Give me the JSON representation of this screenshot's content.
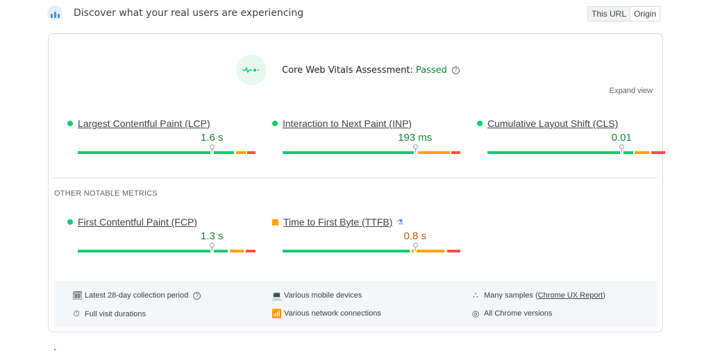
{
  "header": {
    "title": "Discover what your real users are experiencing",
    "icon": "users-crux-icon",
    "toggle": [
      {
        "label": "This URL",
        "active": true
      },
      {
        "label": "Origin",
        "active": false
      }
    ]
  },
  "assessment": {
    "label": "Core Web Vitals Assessment:",
    "status": "Passed",
    "status_color": "#188038",
    "help": "?",
    "expand_label": "Expand view"
  },
  "core_metrics": [
    {
      "name": "Largest Contentful Paint (LCP)",
      "value": "1.6 s",
      "rating": "good",
      "marker_pct": 75.5,
      "segments": [
        {
          "color": "#0cce6b",
          "from": 0,
          "to": 74.5
        },
        {
          "color": "#0cce6b",
          "from": 76.5,
          "to": 88
        },
        {
          "color": "#ffa400",
          "from": 89,
          "to": 94.5
        },
        {
          "color": "#ff4e42",
          "from": 95.5,
          "to": 100
        }
      ]
    },
    {
      "name": "Interaction to Next Paint (INP)",
      "value": "193 ms",
      "rating": "good",
      "marker_pct": 74.5,
      "segments": [
        {
          "color": "#0cce6b",
          "from": 0,
          "to": 74
        },
        {
          "color": "#ffa400",
          "from": 76,
          "to": 94
        },
        {
          "color": "#ff4e42",
          "from": 95,
          "to": 100
        }
      ]
    },
    {
      "name": "Cumulative Layout Shift (CLS)",
      "value": "0.01",
      "rating": "good",
      "marker_pct": 75.5,
      "segments": [
        {
          "color": "#0cce6b",
          "from": 0,
          "to": 74.5
        },
        {
          "color": "#0cce6b",
          "from": 76.5,
          "to": 82
        },
        {
          "color": "#ffa400",
          "from": 83,
          "to": 91
        },
        {
          "color": "#ff4e42",
          "from": 92,
          "to": 100
        }
      ]
    }
  ],
  "other_title": "OTHER NOTABLE METRICS",
  "other_metrics": [
    {
      "name": "First Contentful Paint (FCP)",
      "value": "1.3 s",
      "rating": "good",
      "marker_pct": 75.5,
      "segments": [
        {
          "color": "#0cce6b",
          "from": 0,
          "to": 74.5
        },
        {
          "color": "#0cce6b",
          "from": 76.5,
          "to": 84.5
        },
        {
          "color": "#ffa400",
          "from": 85.5,
          "to": 93.5
        },
        {
          "color": "#ff4e42",
          "from": 94.5,
          "to": 100
        }
      ]
    },
    {
      "name": "Time to First Byte (TTFB)",
      "value": "0.8 s",
      "rating": "needs-improvement",
      "experimental": true,
      "marker_pct": 74.5,
      "segments": [
        {
          "color": "#0cce6b",
          "from": 0,
          "to": 71.5
        },
        {
          "color": "#ffa400",
          "from": 72.5,
          "to": 74
        },
        {
          "color": "#ffa400",
          "from": 75.5,
          "to": 91
        },
        {
          "color": "#ff4e42",
          "from": 92.5,
          "to": 100
        }
      ]
    }
  ],
  "footer": {
    "items": [
      {
        "icon": "calendar-icon",
        "text": "Latest 28-day collection period",
        "help": "?"
      },
      {
        "icon": "timer-icon",
        "text": "Full visit durations"
      },
      {
        "icon": "devices-icon",
        "text": "Various mobile devices"
      },
      {
        "icon": "wifi-icon",
        "text": "Various network connections"
      },
      {
        "icon": "samples-icon",
        "text_before": "Many samples (",
        "link": "Chrome UX Report",
        "text_after": ")"
      },
      {
        "icon": "chrome-icon",
        "text": "All Chrome versions"
      }
    ]
  }
}
